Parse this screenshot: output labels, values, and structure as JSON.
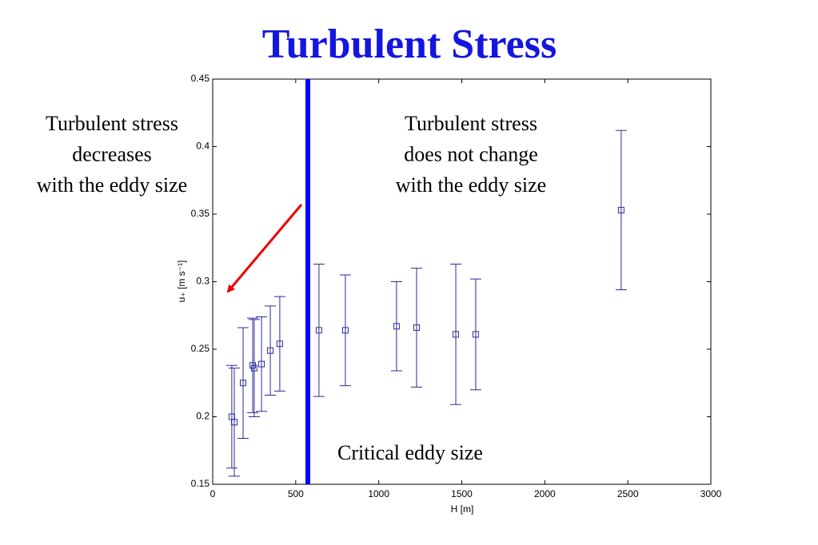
{
  "chart_data": {
    "type": "scatter",
    "title": "Turbulent Stress",
    "x_label": "H [m]",
    "y_label": "u₊ [m s⁻¹]",
    "xlim": [
      0,
      3000
    ],
    "xticks": [
      0,
      500,
      1000,
      1500,
      2000,
      2500,
      3000
    ],
    "ylim": [
      0.15,
      0.45
    ],
    "yticks": [
      0.15,
      0.2,
      0.25,
      0.3,
      0.35,
      0.4,
      0.45
    ],
    "grid": false,
    "series": [
      {
        "color": "#2b2b9a",
        "x": [
          115,
          130,
          183,
          241,
          250,
          294,
          347,
          404,
          640,
          799,
          1107,
          1228,
          1464,
          1584,
          2460
        ],
        "values": [
          0.2,
          0.196,
          0.225,
          0.238,
          0.236,
          0.239,
          0.249,
          0.254,
          0.264,
          0.264,
          0.267,
          0.266,
          0.261,
          0.261,
          0.353
        ],
        "errors": [
          0.038,
          0.04,
          0.041,
          0.035,
          0.036,
          0.035,
          0.033,
          0.035,
          0.049,
          0.041,
          0.033,
          0.044,
          0.052,
          0.041,
          0.059
        ]
      }
    ],
    "critical_x": 573,
    "critical_color": "#0000ff",
    "annotations": [
      {
        "lines": [
          "Turbulent stress",
          "decreases",
          "with the eddy size"
        ]
      },
      {
        "lines": [
          "Turbulent stress",
          "does not  change",
          "with the eddy size"
        ]
      },
      {
        "lines": [
          "Critical eddy size"
        ]
      }
    ]
  }
}
